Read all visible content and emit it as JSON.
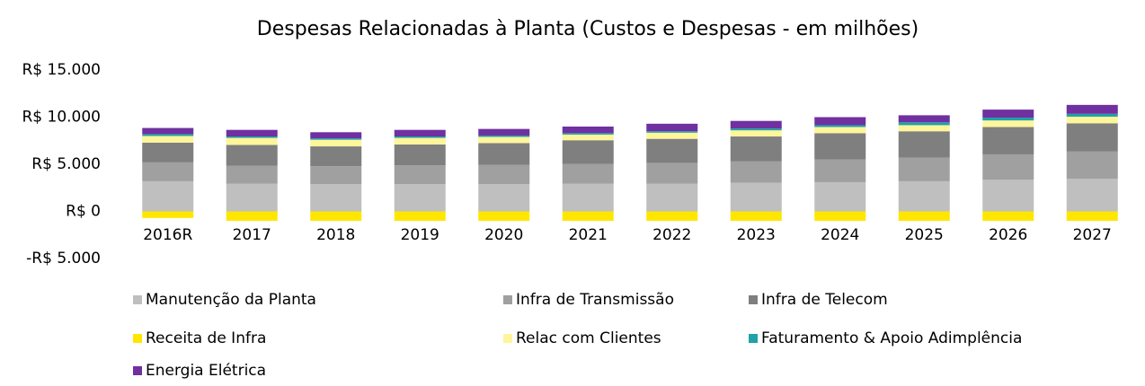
{
  "chart_data": {
    "type": "stacked_bar",
    "title": "Despesas Relacionadas à Planta (Custos e Despesas - em milhões)",
    "categories": [
      "2016R",
      "2017",
      "2018",
      "2019",
      "2020",
      "2021",
      "2022",
      "2023",
      "2024",
      "2025",
      "2026",
      "2027"
    ],
    "series": [
      {
        "name": "Manutenção da Planta",
        "color": "#bfbfbf",
        "values": [
          3200,
          2950,
          2900,
          2900,
          2900,
          2950,
          2950,
          3050,
          3100,
          3200,
          3350,
          3450
        ]
      },
      {
        "name": "Infra de Transmissão",
        "color": "#a0a0a0",
        "values": [
          2000,
          1900,
          1900,
          2000,
          2050,
          2100,
          2200,
          2250,
          2400,
          2500,
          2700,
          2900
        ]
      },
      {
        "name": "Infra de Telecom",
        "color": "#7f7f7f",
        "values": [
          2100,
          2200,
          2100,
          2200,
          2300,
          2500,
          2550,
          2650,
          2800,
          2800,
          2900,
          3000
        ]
      },
      {
        "name": "Receita de Infra",
        "color": "#ffe600",
        "values": [
          -700,
          -1000,
          -1000,
          -1000,
          -1000,
          -1000,
          -1000,
          -1000,
          -1000,
          -1000,
          -1000,
          -1000
        ]
      },
      {
        "name": "Relac com Clientes",
        "color": "#fff59a",
        "values": [
          700,
          750,
          700,
          700,
          650,
          600,
          650,
          650,
          650,
          650,
          700,
          700
        ]
      },
      {
        "name": "Faturamento & Apoio Adimplência",
        "color": "#1fa2a8",
        "values": [
          200,
          150,
          150,
          150,
          150,
          150,
          150,
          200,
          200,
          300,
          300,
          300
        ]
      },
      {
        "name": "Energia Elétrica",
        "color": "#7030a0",
        "values": [
          650,
          700,
          650,
          700,
          700,
          700,
          800,
          800,
          850,
          750,
          850,
          950
        ]
      }
    ],
    "ylim": [
      -5000,
      15000
    ],
    "yticks": [
      {
        "value": -5000,
        "label": "-R$ 5.000"
      },
      {
        "value": 0,
        "label": "R$ 0"
      },
      {
        "value": 5000,
        "label": "R$ 5.000"
      },
      {
        "value": 10000,
        "label": "R$ 10.000"
      },
      {
        "value": 15000,
        "label": "R$ 15.000"
      }
    ],
    "legend": "bottom"
  }
}
